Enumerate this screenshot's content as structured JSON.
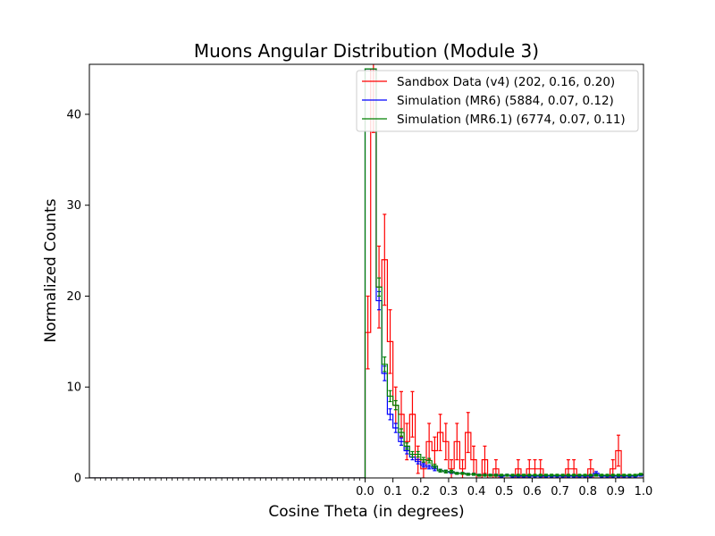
{
  "chart_data": {
    "type": "histogram",
    "title": "Muons Angular Distribution (Module 3)",
    "xlabel": "Cosine Theta (in degrees)",
    "ylabel": "Normalized Counts",
    "xlim": [
      -1.0,
      1.0
    ],
    "ylim": [
      0,
      45.5
    ],
    "bin_width": 0.02,
    "x_ticks": [
      0.0,
      0.1,
      0.2,
      0.3,
      0.4,
      0.5,
      0.6,
      0.7,
      0.8,
      0.9,
      1.0
    ],
    "x_tick_labels": [
      "0.0",
      "0.1",
      "0.2",
      "0.3",
      "0.4",
      "0.5",
      "0.6",
      "0.7",
      "0.8",
      "0.9",
      "1.0"
    ],
    "y_ticks": [
      0,
      10,
      20,
      30,
      40
    ],
    "y_tick_labels": [
      "0",
      "10",
      "20",
      "30",
      "40"
    ],
    "grid": false,
    "legend_position": "top-right",
    "series": [
      {
        "name": "Sandbox Data (v4) (202, 0.16, 0.20)",
        "color": "#ff0000",
        "bin_starts": [
          -1.0,
          0.0,
          0.02,
          0.04,
          0.06,
          0.08,
          0.1,
          0.12,
          0.14,
          0.16,
          0.18,
          0.2,
          0.22,
          0.24,
          0.26,
          0.28,
          0.3,
          0.32,
          0.34,
          0.36,
          0.38,
          0.4,
          0.42,
          0.44,
          0.46,
          0.48,
          0.5,
          0.52,
          0.54,
          0.56,
          0.58,
          0.6,
          0.62,
          0.64,
          0.66,
          0.68,
          0.7,
          0.72,
          0.74,
          0.76,
          0.78,
          0.8,
          0.82,
          0.84,
          0.86,
          0.88,
          0.9,
          0.92,
          0.94,
          0.96,
          0.98
        ],
        "values": [
          0,
          16,
          45,
          21,
          24,
          15,
          8,
          7,
          4,
          7,
          2,
          1,
          4,
          3,
          5,
          4,
          1,
          4,
          1,
          5,
          2,
          0,
          2,
          0,
          1,
          0,
          0,
          0,
          1,
          0,
          1,
          1,
          1,
          0,
          0,
          0,
          0,
          1,
          1,
          0,
          0,
          1,
          0,
          0,
          0,
          1,
          3,
          0,
          0,
          0,
          0
        ],
        "errors": [
          0,
          4,
          7,
          4.5,
          5,
          3.5,
          2,
          2.5,
          2,
          2.5,
          1.5,
          1,
          2,
          1.5,
          2,
          2,
          1,
          2,
          1,
          2.2,
          1.5,
          0,
          1.5,
          0,
          1,
          0,
          0,
          0,
          1,
          0,
          1,
          1,
          1,
          0,
          0,
          0,
          0,
          1,
          1,
          0,
          0,
          1,
          0,
          0,
          0,
          1,
          1.7,
          0,
          0,
          0,
          0
        ]
      },
      {
        "name": "Simulation (MR6) (5884, 0.07, 0.12)",
        "color": "#0000ff",
        "bin_starts": [
          -1.0,
          0.0,
          0.02,
          0.04,
          0.06,
          0.08,
          0.1,
          0.12,
          0.14,
          0.16,
          0.18,
          0.2,
          0.22,
          0.24,
          0.26,
          0.28,
          0.3,
          0.32,
          0.34,
          0.36,
          0.38,
          0.4,
          0.42,
          0.44,
          0.46,
          0.48,
          0.5,
          0.52,
          0.54,
          0.56,
          0.58,
          0.6,
          0.62,
          0.64,
          0.66,
          0.68,
          0.7,
          0.72,
          0.74,
          0.76,
          0.78,
          0.8,
          0.82,
          0.84,
          0.86,
          0.88,
          0.9,
          0.92,
          0.94,
          0.96,
          0.98
        ],
        "values": [
          0,
          45,
          45,
          19.5,
          11.5,
          7,
          5.5,
          4,
          3,
          2.3,
          1.8,
          1.4,
          1.2,
          1,
          0.8,
          0.7,
          0.6,
          0.5,
          0.5,
          0.4,
          0.4,
          0.3,
          0.3,
          0.3,
          0.3,
          0.2,
          0.3,
          0.2,
          0.2,
          0.2,
          0.2,
          0.2,
          0.2,
          0.2,
          0.2,
          0.2,
          0.2,
          0.2,
          0.2,
          0.2,
          0.2,
          0.2,
          0.5,
          0.2,
          0.2,
          0.2,
          0.2,
          0.2,
          0.2,
          0.2,
          0.3
        ],
        "errors": [
          0,
          0,
          0,
          1,
          0.8,
          0.6,
          0.5,
          0.4,
          0.35,
          0.3,
          0.25,
          0.2,
          0.2,
          0.2,
          0.15,
          0.15,
          0.1,
          0.1,
          0.1,
          0.1,
          0.1,
          0.1,
          0.1,
          0.1,
          0.1,
          0.1,
          0.1,
          0.1,
          0.1,
          0.1,
          0.1,
          0.1,
          0.1,
          0.1,
          0.1,
          0.1,
          0.1,
          0.1,
          0.1,
          0.1,
          0.1,
          0.1,
          0.2,
          0.1,
          0.1,
          0.1,
          0.1,
          0.1,
          0.1,
          0.1,
          0.1
        ]
      },
      {
        "name": "Simulation (MR6.1) (6774, 0.07, 0.11)",
        "color": "#008000",
        "bin_starts": [
          -1.0,
          0.0,
          0.02,
          0.04,
          0.06,
          0.08,
          0.1,
          0.12,
          0.14,
          0.16,
          0.18,
          0.2,
          0.22,
          0.24,
          0.26,
          0.28,
          0.3,
          0.32,
          0.34,
          0.36,
          0.38,
          0.4,
          0.42,
          0.44,
          0.46,
          0.48,
          0.5,
          0.52,
          0.54,
          0.56,
          0.58,
          0.6,
          0.62,
          0.64,
          0.66,
          0.68,
          0.7,
          0.72,
          0.74,
          0.76,
          0.78,
          0.8,
          0.82,
          0.84,
          0.86,
          0.88,
          0.9,
          0.92,
          0.94,
          0.96,
          0.98
        ],
        "values": [
          0,
          45,
          45,
          21,
          12.5,
          9,
          8,
          5,
          3.5,
          2.6,
          2.6,
          2,
          1.9,
          1.3,
          0.8,
          0.7,
          0.7,
          0.5,
          0.5,
          0.4,
          0.4,
          0.3,
          0.3,
          0.3,
          0.3,
          0.3,
          0.3,
          0.3,
          0.3,
          0.3,
          0.3,
          0.3,
          0.3,
          0.3,
          0.3,
          0.3,
          0.3,
          0.3,
          0.3,
          0.3,
          0.3,
          0.3,
          0.3,
          0.3,
          0.3,
          0.3,
          0.3,
          0.3,
          0.3,
          0.3,
          0.4
        ],
        "errors": [
          0,
          0,
          0,
          1,
          0.8,
          0.6,
          0.5,
          0.4,
          0.35,
          0.3,
          0.3,
          0.25,
          0.25,
          0.2,
          0.15,
          0.15,
          0.15,
          0.1,
          0.1,
          0.1,
          0.1,
          0.1,
          0.1,
          0.1,
          0.1,
          0.1,
          0.1,
          0.1,
          0.1,
          0.1,
          0.1,
          0.1,
          0.1,
          0.1,
          0.1,
          0.1,
          0.1,
          0.1,
          0.1,
          0.1,
          0.1,
          0.1,
          0.1,
          0.1,
          0.1,
          0.1,
          0.1,
          0.1,
          0.1,
          0.1,
          0.1
        ]
      }
    ]
  }
}
